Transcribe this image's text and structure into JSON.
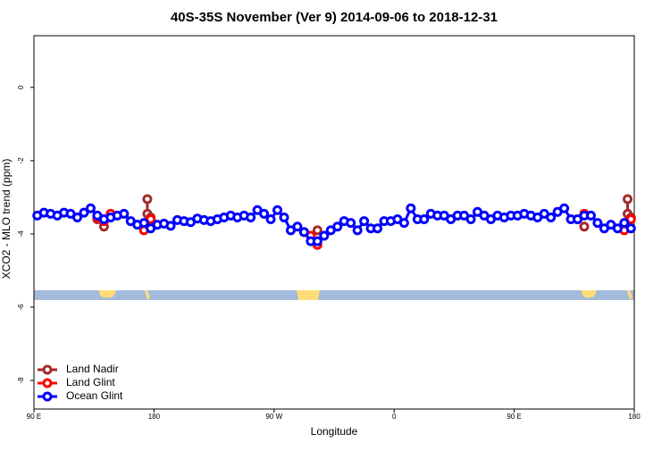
{
  "chart_data": {
    "type": "line",
    "title": "40S-35S November (Ver 9)   2014-09-06 to 2018-12-31",
    "x_label": "Longitude",
    "y_label": "XCO2 - MLO trend (ppm)",
    "xlim": [
      90,
      540
    ],
    "xticks": [
      {
        "value": 90,
        "label": "90 E"
      },
      {
        "value": 180,
        "label": "180"
      },
      {
        "value": 270,
        "label": "90 W"
      },
      {
        "value": 360,
        "label": "0"
      },
      {
        "value": 450,
        "label": "90 E"
      },
      {
        "value": 540,
        "label": "180"
      }
    ],
    "ylim": [
      -8.78,
      1.41
    ],
    "yticks": [
      0,
      -2,
      -4,
      -6,
      -8
    ],
    "legend": "bottomleft",
    "series": [
      {
        "name": "Land Nadir",
        "color": "#a52a2a",
        "x": [
          137.5,
          142.5,
          null,
          175,
          175,
          177.5,
          null,
          302.5,
          null,
          502.5,
          null,
          535,
          535,
          537.5
        ],
        "values": [
          -3.6,
          -3.8,
          null,
          -3.05,
          -3.45,
          -3.55,
          null,
          -3.9,
          null,
          -3.8,
          null,
          -3.05,
          -3.45,
          -3.55
        ]
      },
      {
        "name": "Land Glint",
        "color": "#ff0000",
        "x": [
          137.5,
          142.5,
          147.5,
          null,
          172.5,
          177.5,
          null,
          292.5,
          297.5,
          302.5,
          null,
          497.5,
          502.5,
          null,
          532.5,
          537.5
        ],
        "values": [
          -3.55,
          -3.65,
          -3.45,
          null,
          -3.9,
          -3.6,
          null,
          -3.95,
          -4.05,
          -4.3,
          null,
          -3.6,
          -3.45,
          null,
          -3.9,
          -3.6
        ]
      },
      {
        "name": "Ocean Glint",
        "color": "#0000ff",
        "x": [
          92.5,
          97.5,
          102.5,
          107.5,
          112.5,
          117.5,
          122.5,
          127.5,
          132.5,
          137.5,
          142.5,
          147.5,
          152.5,
          157.5,
          162.5,
          167.5,
          172.5,
          177.5,
          182.5,
          187.5,
          192.5,
          197.5,
          202.5,
          207.5,
          212.5,
          217.5,
          222.5,
          227.5,
          232.5,
          237.5,
          242.5,
          247.5,
          252.5,
          257.5,
          262.5,
          267.5,
          272.5,
          277.5,
          282.5,
          287.5,
          292.5,
          297.5,
          302.5,
          307.5,
          312.5,
          317.5,
          322.5,
          327.5,
          332.5,
          337.5,
          342.5,
          347.5,
          352.5,
          357.5,
          362.5,
          367.5,
          372.5,
          377.5,
          382.5,
          387.5,
          392.5,
          397.5,
          402.5,
          407.5,
          412.5,
          417.5,
          422.5,
          427.5,
          432.5,
          437.5,
          442.5,
          447.5,
          452.5,
          457.5,
          462.5,
          467.5,
          472.5,
          477.5,
          482.5,
          487.5,
          492.5,
          497.5,
          502.5,
          507.5,
          512.5,
          517.5,
          522.5,
          527.5,
          532.5,
          537.5
        ],
        "values": [
          -3.5,
          -3.42,
          -3.45,
          -3.5,
          -3.42,
          -3.45,
          -3.55,
          -3.42,
          -3.3,
          -3.5,
          -3.6,
          -3.55,
          -3.5,
          -3.45,
          -3.65,
          -3.75,
          -3.7,
          -3.85,
          -3.75,
          -3.72,
          -3.78,
          -3.62,
          -3.65,
          -3.68,
          -3.58,
          -3.62,
          -3.65,
          -3.6,
          -3.55,
          -3.5,
          -3.55,
          -3.5,
          -3.55,
          -3.35,
          -3.45,
          -3.6,
          -3.35,
          -3.55,
          -3.9,
          -3.8,
          -3.95,
          -4.2,
          -4.2,
          -4.05,
          -3.9,
          -3.8,
          -3.65,
          -3.7,
          -3.9,
          -3.65,
          -3.85,
          -3.85,
          -3.65,
          -3.65,
          -3.6,
          -3.7,
          -3.3,
          -3.6,
          -3.6,
          -3.45,
          -3.5,
          -3.5,
          -3.6,
          -3.5,
          -3.5,
          -3.6,
          -3.4,
          -3.5,
          -3.6,
          -3.5,
          -3.55,
          -3.5,
          -3.5,
          -3.45,
          -3.5,
          -3.55,
          -3.45,
          -3.55,
          -3.4,
          -3.3,
          -3.6,
          -3.6,
          -3.5,
          -3.5,
          -3.7,
          -3.85,
          -3.75,
          -3.85,
          -3.7,
          -3.85
        ]
      }
    ]
  }
}
